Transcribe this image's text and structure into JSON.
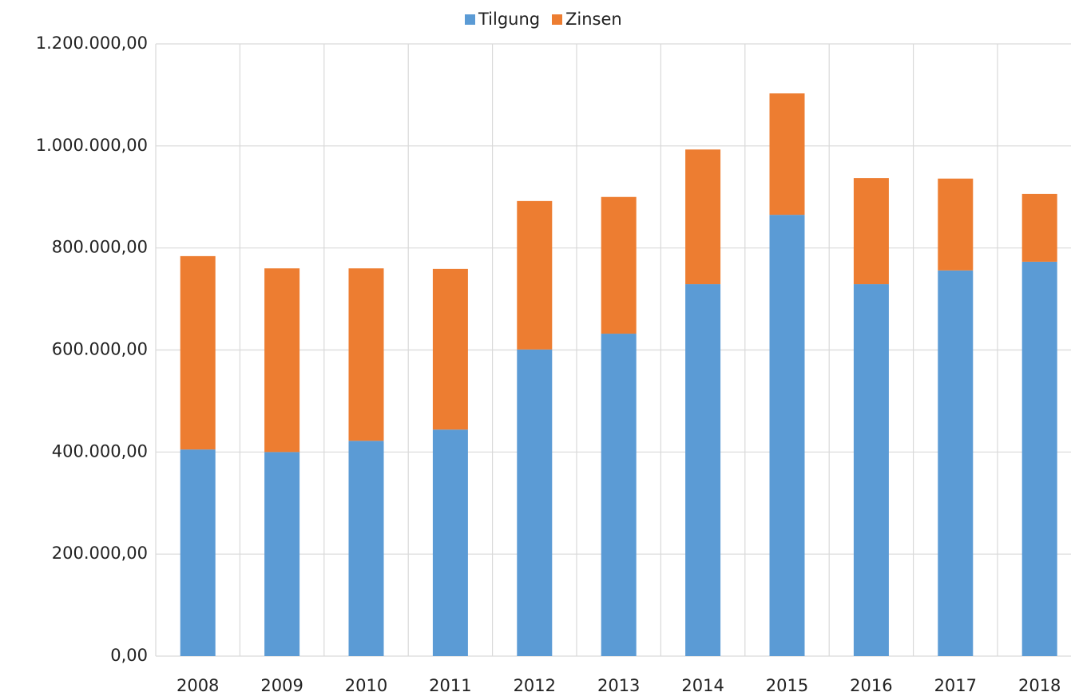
{
  "chart_data": {
    "type": "stacked_bar",
    "categories": [
      "2008",
      "2009",
      "2010",
      "2011",
      "2012",
      "2013",
      "2014",
      "2015",
      "2016",
      "2017",
      "2018"
    ],
    "series": [
      {
        "name": "Tilgung",
        "color": "#5b9bd5",
        "values": [
          405000,
          400000,
          422000,
          444000,
          601000,
          632000,
          729000,
          865000,
          729000,
          756000,
          773000
        ]
      },
      {
        "name": "Zinsen",
        "color": "#ed7d31",
        "values": [
          379000,
          360000,
          338000,
          315000,
          291000,
          268000,
          264000,
          238000,
          208000,
          180000,
          133000
        ]
      }
    ],
    "ylim": [
      0,
      1200000
    ],
    "yticks": [
      {
        "value": 0,
        "label": "0,00"
      },
      {
        "value": 200000,
        "label": "200.000,00"
      },
      {
        "value": 400000,
        "label": "400.000,00"
      },
      {
        "value": 600000,
        "label": "600.000,00"
      },
      {
        "value": 800000,
        "label": "800.000,00"
      },
      {
        "value": 1000000,
        "label": "1.000.000,00"
      },
      {
        "value": 1200000,
        "label": "1.200.000,00"
      }
    ],
    "grid": true,
    "legend": "top"
  }
}
